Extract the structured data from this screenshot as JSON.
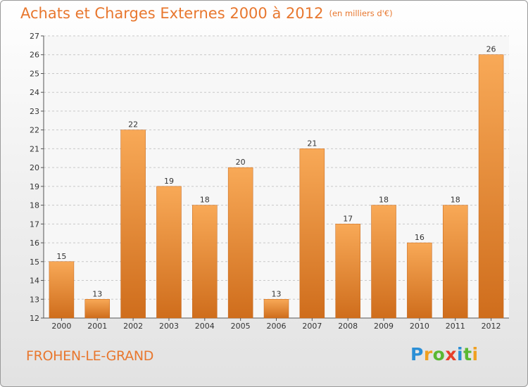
{
  "header": {
    "title": "Achats et Charges Externes 2000 à 2012",
    "subtitle": "(en milliers d'€)"
  },
  "footer": {
    "town": "FROHEN-LE-GRAND",
    "logo_text": "Proxiti",
    "logo_letters": [
      {
        "ch": "P",
        "color": "#2b8fd6"
      },
      {
        "ch": "r",
        "color": "#f0a020"
      },
      {
        "ch": "o",
        "color": "#5ab832"
      },
      {
        "ch": "x",
        "color": "#e8402a"
      },
      {
        "ch": "i",
        "color": "#2b8fd6"
      },
      {
        "ch": "t",
        "color": "#5ab832"
      },
      {
        "ch": "i",
        "color": "#f0a020"
      }
    ]
  },
  "colors": {
    "accent": "#e8772e",
    "bar_light": "#f8a957",
    "bar_dark": "#cf6d1c",
    "grid": "#c8c8c8"
  },
  "chart_data": {
    "type": "bar",
    "title": "Achats et Charges Externes 2000 à 2012",
    "subtitle": "(en milliers d'€)",
    "categories": [
      "2000",
      "2001",
      "2002",
      "2003",
      "2004",
      "2005",
      "2006",
      "2007",
      "2008",
      "2009",
      "2010",
      "2011",
      "2012"
    ],
    "values": [
      15,
      13,
      22,
      19,
      18,
      20,
      13,
      21,
      17,
      18,
      16,
      18,
      26
    ],
    "ylim": [
      12,
      27
    ],
    "yticks": [
      12,
      13,
      14,
      15,
      16,
      17,
      18,
      19,
      20,
      21,
      22,
      23,
      24,
      25,
      26,
      27
    ],
    "grid": true,
    "data_labels": true
  }
}
